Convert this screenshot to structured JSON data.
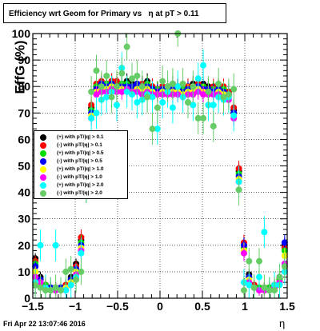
{
  "title": "Efficiency wrt Geom for Primary vs   η at pT > 0.11",
  "footer": "Fri Apr 22 13:07:46 2016",
  "chart_data": {
    "type": "scatter",
    "xlabel": "η",
    "ylabel": "EffG (%)",
    "xlim": [
      -1.5,
      1.5
    ],
    "ylim": [
      0,
      100
    ],
    "xticks": [
      "−1.5",
      "−1",
      "−0.5",
      "0",
      "0.5",
      "1",
      "1.5"
    ],
    "yticks": [
      "0",
      "10",
      "20",
      "30",
      "40",
      "50",
      "60",
      "70",
      "80",
      "90",
      "100"
    ],
    "grid": true,
    "legend_position": "left",
    "x": [
      -1.47,
      -1.41,
      -1.35,
      -1.29,
      -1.23,
      -1.17,
      -1.11,
      -1.05,
      -0.99,
      -0.93,
      -0.87,
      -0.81,
      -0.75,
      -0.69,
      -0.63,
      -0.57,
      -0.51,
      -0.45,
      -0.39,
      -0.33,
      -0.27,
      -0.21,
      -0.15,
      -0.09,
      -0.03,
      0.03,
      0.09,
      0.15,
      0.21,
      0.27,
      0.33,
      0.39,
      0.45,
      0.51,
      0.57,
      0.63,
      0.69,
      0.75,
      0.81,
      0.87,
      0.93,
      0.99,
      1.05,
      1.11,
      1.17,
      1.23,
      1.29,
      1.35,
      1.41,
      1.47
    ],
    "series": [
      {
        "name": "(+) with pT/|q| > 0.1",
        "color": "#000000",
        "values": [
          15,
          8,
          5,
          4,
          4,
          4,
          5,
          8,
          13,
          22,
          48,
          72,
          80,
          81,
          81,
          82,
          81,
          81,
          82,
          81,
          80,
          81,
          82,
          80,
          79,
          79,
          80,
          81,
          80,
          79,
          80,
          81,
          80,
          81,
          80,
          79,
          80,
          79,
          78,
          71,
          48,
          20,
          9,
          5,
          4,
          4,
          4,
          5,
          8,
          20
        ]
      },
      {
        "name": "(-) with pT/|q| > 0.1",
        "color": "#ff0000",
        "values": [
          14,
          7,
          5,
          4,
          4,
          4,
          5,
          7,
          12,
          23,
          49,
          73,
          81,
          82,
          81,
          82,
          82,
          81,
          81,
          80,
          81,
          81,
          80,
          80,
          79,
          80,
          80,
          79,
          80,
          79,
          80,
          80,
          81,
          80,
          79,
          80,
          79,
          80,
          78,
          72,
          49,
          21,
          8,
          5,
          4,
          4,
          4,
          5,
          7,
          19
        ]
      },
      {
        "name": "(+) with pT/|q| > 0.5",
        "color": "#00dd00",
        "values": [
          13,
          7,
          5,
          4,
          3,
          4,
          4,
          7,
          11,
          21,
          47,
          71,
          80,
          80,
          81,
          81,
          80,
          81,
          81,
          80,
          80,
          80,
          81,
          79,
          79,
          79,
          79,
          80,
          79,
          79,
          79,
          80,
          80,
          80,
          79,
          79,
          79,
          79,
          77,
          70,
          47,
          19,
          8,
          4,
          4,
          3,
          4,
          4,
          7,
          18
        ]
      },
      {
        "name": "(-) with pT/|q| > 0.5",
        "color": "#0000ff",
        "values": [
          12,
          7,
          4,
          4,
          3,
          4,
          4,
          7,
          11,
          20,
          46,
          70,
          79,
          81,
          80,
          81,
          80,
          80,
          80,
          80,
          81,
          80,
          80,
          79,
          78,
          79,
          79,
          79,
          79,
          78,
          79,
          79,
          80,
          79,
          79,
          78,
          79,
          78,
          77,
          70,
          46,
          20,
          8,
          4,
          3,
          3,
          3,
          4,
          8,
          21
        ]
      },
      {
        "name": "(+) with pT/|q| > 1.0",
        "color": "#ffff00",
        "values": [
          10,
          6,
          4,
          3,
          3,
          3,
          4,
          6,
          10,
          19,
          45,
          69,
          78,
          79,
          79,
          80,
          79,
          79,
          79,
          78,
          79,
          78,
          79,
          78,
          77,
          78,
          78,
          78,
          78,
          77,
          78,
          78,
          79,
          78,
          78,
          77,
          78,
          77,
          76,
          69,
          45,
          18,
          7,
          4,
          3,
          3,
          3,
          4,
          6,
          16
        ]
      },
      {
        "name": "(-) with pT/|q| > 1.0",
        "color": "#ff00ff",
        "values": [
          8,
          6,
          4,
          3,
          3,
          3,
          3,
          5,
          9,
          18,
          44,
          68,
          77,
          78,
          78,
          79,
          78,
          78,
          79,
          78,
          78,
          77,
          78,
          77,
          77,
          77,
          77,
          77,
          77,
          76,
          77,
          77,
          78,
          77,
          77,
          77,
          77,
          76,
          75,
          68,
          44,
          17,
          6,
          4,
          3,
          3,
          3,
          4,
          6,
          13
        ]
      },
      {
        "name": "(+) with pT/|q| > 2.0",
        "color": "#00ffff",
        "values": [
          6,
          20,
          4,
          3,
          20,
          3,
          3,
          5,
          8,
          17,
          42,
          68,
          70,
          75,
          76,
          78,
          73,
          87,
          78,
          77,
          74,
          75,
          77,
          76,
          64,
          74,
          78,
          72,
          80,
          76,
          74,
          73,
          83,
          88,
          73,
          73,
          76,
          75,
          76,
          69,
          44,
          6,
          5,
          4,
          8,
          25,
          3,
          5,
          5,
          10
        ]
      },
      {
        "name": "(-) with pT/|q| > 2.0",
        "color": "#66cc66",
        "values": [
          5,
          4,
          3,
          3,
          4,
          3,
          10,
          11,
          7,
          10,
          42,
          78,
          86,
          80,
          84,
          76,
          80,
          85,
          95,
          83,
          84,
          80,
          76,
          64,
          72,
          82,
          80,
          81,
          100,
          81,
          74,
          80,
          68,
          68,
          78,
          65,
          81,
          76,
          77,
          79,
          41,
          3,
          14,
          4,
          14,
          4,
          3,
          3,
          8,
          12
        ]
      }
    ]
  }
}
